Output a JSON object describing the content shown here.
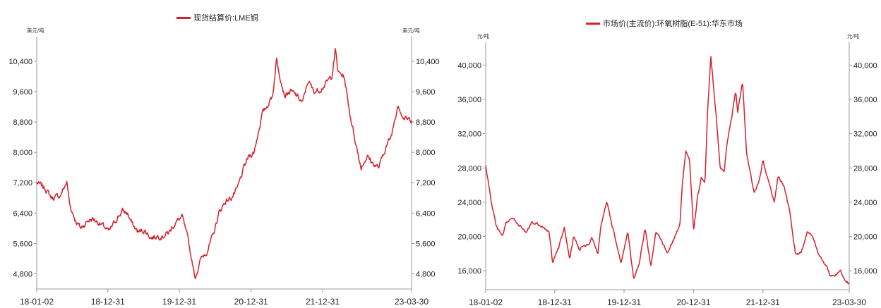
{
  "colors": {
    "series": "#d6202c",
    "axis": "#9a9a9a",
    "text": "#222222"
  },
  "chart_data": [
    {
      "type": "line",
      "legend_position": "top-center",
      "grid": false,
      "legend": "现货结算价:LME铜",
      "ylabel_left": "美元/吨",
      "ylabel_right": "美元/吨",
      "ylim": [
        4400,
        10900
      ],
      "yticks": [
        4800,
        5600,
        6400,
        7200,
        8000,
        8800,
        9600,
        10400
      ],
      "ytick_labels": [
        "4,800",
        "5,600",
        "6,400",
        "7,200",
        "8,000",
        "8,800",
        "9,600",
        "10,400"
      ],
      "xlim": [
        "2018-01-02",
        "2023-03-30"
      ],
      "xticks": [
        "2018-01-02",
        "2018-12-31",
        "2019-12-31",
        "2020-12-31",
        "2021-12-31",
        "2023-03-30"
      ],
      "xtick_labels": [
        "18-01-02",
        "18-12-31",
        "19-12-31",
        "20-12-31",
        "21-12-31",
        "23-03-30"
      ],
      "series": [
        {
          "x": [
            "2018-01-02",
            "2018-02-15",
            "2018-03-20",
            "2018-05-01",
            "2018-06-05",
            "2018-06-20",
            "2018-07-20",
            "2018-08-15",
            "2018-09-20",
            "2018-10-15",
            "2018-11-15",
            "2018-12-20",
            "2019-01-05",
            "2019-02-20",
            "2019-03-15",
            "2019-04-10",
            "2019-05-10",
            "2019-06-05",
            "2019-07-05",
            "2019-08-10",
            "2019-09-10",
            "2019-10-10",
            "2019-11-10",
            "2019-12-10",
            "2020-01-15",
            "2020-02-15",
            "2020-03-20",
            "2020-04-20",
            "2020-05-20",
            "2020-06-20",
            "2020-07-20",
            "2020-08-20",
            "2020-09-20",
            "2020-10-20",
            "2020-11-25",
            "2020-12-20",
            "2021-01-15",
            "2021-02-25",
            "2021-03-20",
            "2021-04-20",
            "2021-05-10",
            "2021-06-20",
            "2021-07-20",
            "2021-08-20",
            "2021-09-20",
            "2021-10-18",
            "2021-11-15",
            "2021-12-15",
            "2022-01-15",
            "2022-02-15",
            "2022-03-07",
            "2022-03-20",
            "2022-04-20",
            "2022-05-20",
            "2022-06-20",
            "2022-07-15",
            "2022-08-15",
            "2022-09-15",
            "2022-10-15",
            "2022-11-15",
            "2022-12-15",
            "2023-01-20",
            "2023-02-15",
            "2023-03-30"
          ],
          "values": [
            7200,
            7050,
            6800,
            6850,
            7220,
            6600,
            6200,
            6000,
            6200,
            6250,
            6150,
            6000,
            5900,
            6300,
            6450,
            6400,
            6050,
            5900,
            5950,
            5750,
            5800,
            5800,
            5900,
            6150,
            6300,
            5650,
            4700,
            5200,
            5400,
            5800,
            6400,
            6700,
            6800,
            7000,
            7600,
            7900,
            8000,
            9000,
            9200,
            9500,
            10450,
            9500,
            9600,
            9500,
            9300,
            9900,
            9600,
            9650,
            9800,
            10000,
            10700,
            10100,
            10000,
            9000,
            8200,
            7600,
            7900,
            7700,
            7600,
            8100,
            8400,
            9300,
            8900,
            8850
          ],
          "noise": 120
        }
      ]
    },
    {
      "type": "line",
      "legend_position": "top-center",
      "grid": false,
      "legend": "市场价(主流价):环氧树脂(E-51):华东市场",
      "ylabel_left": "元/吨",
      "ylabel_right": "元/吨",
      "ylim": [
        13800,
        42000
      ],
      "yticks": [
        16000,
        20000,
        24000,
        28000,
        32000,
        36000,
        40000
      ],
      "ytick_labels": [
        "16,000",
        "20,000",
        "24,000",
        "28,000",
        "32,000",
        "36,000",
        "40,000"
      ],
      "xlim": [
        "2018-01-02",
        "2023-03-30"
      ],
      "xticks": [
        "2018-01-02",
        "2018-12-31",
        "2019-12-31",
        "2020-12-31",
        "2021-12-31",
        "2023-03-30"
      ],
      "xtick_labels": [
        "18-01-02",
        "18-12-31",
        "19-12-31",
        "20-12-31",
        "21-12-31",
        "23-03-30"
      ],
      "series": [
        {
          "x": [
            "2018-01-02",
            "2018-02-01",
            "2018-03-01",
            "2018-04-01",
            "2018-04-20",
            "2018-05-10",
            "2018-06-01",
            "2018-08-01",
            "2018-09-01",
            "2018-10-01",
            "2018-11-01",
            "2018-12-01",
            "2018-12-20",
            "2019-01-20",
            "2019-02-20",
            "2019-03-20",
            "2019-04-10",
            "2019-05-10",
            "2019-06-01",
            "2019-07-01",
            "2019-07-15",
            "2019-08-15",
            "2019-09-01",
            "2019-10-01",
            "2019-11-01",
            "2019-12-15",
            "2020-01-20",
            "2020-02-20",
            "2020-03-20",
            "2020-04-20",
            "2020-05-20",
            "2020-06-15",
            "2020-07-15",
            "2020-08-15",
            "2020-09-15",
            "2020-10-20",
            "2020-11-01",
            "2020-11-20",
            "2020-12-10",
            "2020-12-31",
            "2021-01-20",
            "2021-02-10",
            "2021-03-01",
            "2021-03-15",
            "2021-04-01",
            "2021-05-01",
            "2021-05-20",
            "2021-06-10",
            "2021-06-25",
            "2021-07-20",
            "2021-08-10",
            "2021-08-20",
            "2021-09-15",
            "2021-10-05",
            "2021-10-25",
            "2021-11-15",
            "2021-12-10",
            "2022-01-01",
            "2022-01-20",
            "2022-02-10",
            "2022-03-01",
            "2022-03-20",
            "2022-04-20",
            "2022-05-20",
            "2022-06-20",
            "2022-07-20",
            "2022-08-20",
            "2022-09-20",
            "2022-10-20",
            "2022-11-15",
            "2022-12-01",
            "2022-12-20",
            "2023-01-20",
            "2023-02-10",
            "2023-03-01",
            "2023-03-30"
          ],
          "values": [
            28300,
            24000,
            21000,
            20000,
            21500,
            22000,
            22000,
            20500,
            21500,
            21500,
            21000,
            20500,
            17000,
            18500,
            21000,
            17500,
            20000,
            18500,
            19000,
            19000,
            20000,
            18000,
            21500,
            24000,
            21000,
            17000,
            20500,
            15000,
            17000,
            21000,
            16500,
            20500,
            19500,
            18000,
            19500,
            21500,
            26000,
            30000,
            29000,
            20500,
            24500,
            27000,
            26000,
            35000,
            41000,
            33500,
            28000,
            27500,
            31000,
            34000,
            37000,
            34500,
            38000,
            30000,
            27500,
            25000,
            26500,
            29000,
            27000,
            25500,
            24000,
            27000,
            26000,
            23000,
            18000,
            18000,
            20500,
            20000,
            18000,
            17000,
            16500,
            15500,
            15500,
            16000,
            15000,
            14500
          ],
          "noise": 250
        }
      ]
    }
  ]
}
